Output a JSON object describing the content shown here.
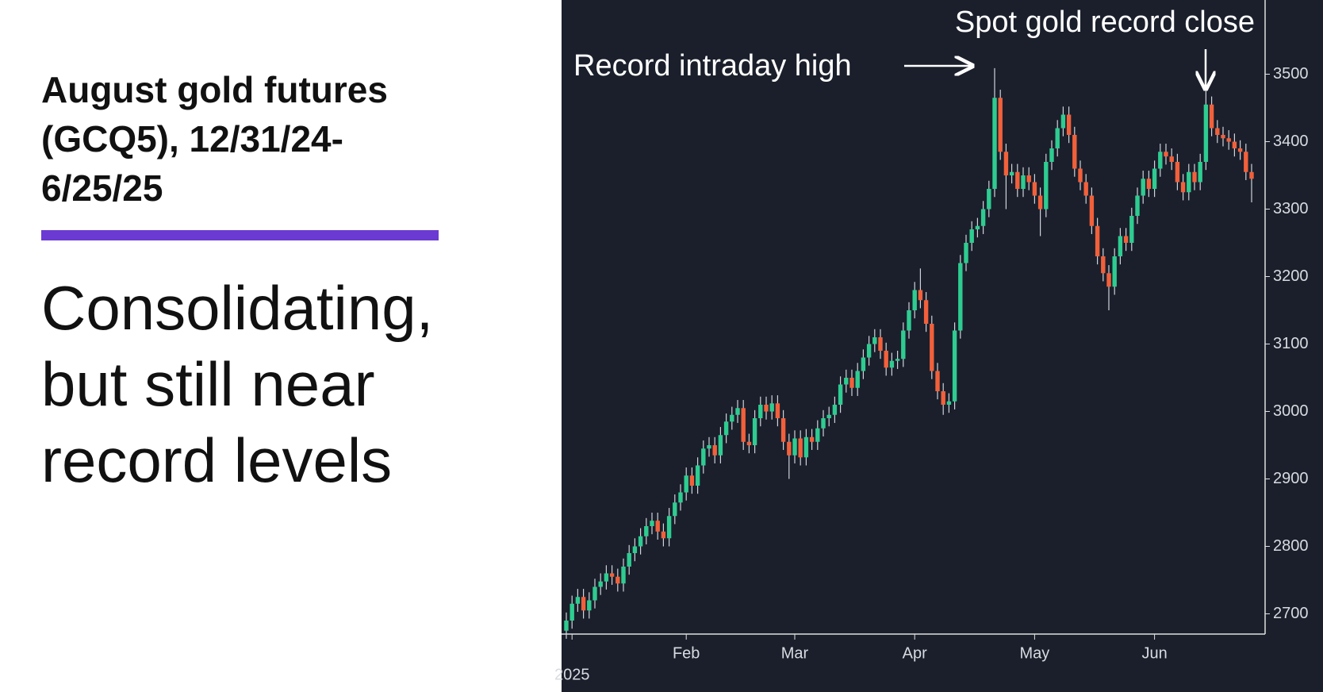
{
  "header": {
    "title": "August gold futures (GCQ5), 12/31/24-6/25/25",
    "subtitle": "Consolidating, but still near record levels"
  },
  "chart_data": {
    "type": "candlestick",
    "annotations": [
      "Record intraday high",
      "Spot gold record close"
    ],
    "categories": [
      null,
      "2025",
      null,
      null,
      null,
      null,
      null,
      null,
      null,
      null,
      null,
      null,
      null,
      null,
      null,
      null,
      null,
      null,
      null,
      null,
      null,
      "Feb",
      null,
      null,
      null,
      null,
      null,
      null,
      null,
      null,
      null,
      null,
      null,
      null,
      null,
      null,
      null,
      null,
      null,
      null,
      "Mar",
      null,
      null,
      null,
      null,
      null,
      null,
      null,
      null,
      null,
      null,
      null,
      null,
      null,
      null,
      null,
      null,
      null,
      null,
      null,
      null,
      "Apr",
      null,
      null,
      null,
      null,
      null,
      null,
      null,
      null,
      null,
      null,
      null,
      null,
      null,
      null,
      null,
      null,
      null,
      null,
      null,
      null,
      "May",
      null,
      null,
      null,
      null,
      null,
      null,
      null,
      null,
      null,
      null,
      null,
      null,
      null,
      null,
      null,
      null,
      null,
      null,
      null,
      null,
      "Jun",
      null,
      null,
      null,
      null,
      null,
      null,
      null,
      null,
      null,
      null,
      null,
      null,
      null,
      null,
      null,
      null,
      null
    ],
    "open": [
      2675,
      2690,
      2715,
      2725,
      2705,
      2720,
      2740,
      2748,
      2760,
      2755,
      2745,
      2770,
      2790,
      2800,
      2815,
      2830,
      2838,
      2822,
      2812,
      2845,
      2865,
      2880,
      2905,
      2890,
      2920,
      2945,
      2950,
      2935,
      2965,
      2985,
      2995,
      3005,
      2955,
      2950,
      2990,
      3010,
      3000,
      3012,
      2990,
      2955,
      2935,
      2960,
      2932,
      2962,
      2955,
      2975,
      2990,
      2995,
      3010,
      3040,
      3050,
      3035,
      3060,
      3080,
      3100,
      3110,
      3090,
      3065,
      3075,
      3078,
      3120,
      3150,
      3180,
      3165,
      3130,
      3060,
      3030,
      3010,
      3015,
      3120,
      3220,
      3250,
      3270,
      3275,
      3300,
      3330,
      3465,
      3385,
      3350,
      3355,
      3330,
      3350,
      3340,
      3320,
      3300,
      3370,
      3390,
      3420,
      3440,
      3410,
      3360,
      3340,
      3320,
      3275,
      3230,
      3205,
      3185,
      3230,
      3260,
      3250,
      3290,
      3320,
      3345,
      3330,
      3360,
      3385,
      3378,
      3370,
      3340,
      3325,
      3355,
      3340,
      3370,
      3455,
      3420,
      3410,
      3405,
      3400,
      3390,
      3385,
      3355
    ],
    "high": [
      2702,
      2727,
      2737,
      2737,
      2732,
      2752,
      2760,
      2772,
      2772,
      2767,
      2782,
      2802,
      2812,
      2827,
      2842,
      2850,
      2850,
      2834,
      2857,
      2877,
      2892,
      2917,
      2917,
      2932,
      2957,
      2962,
      2962,
      2977,
      2997,
      3007,
      3017,
      3017,
      2967,
      3002,
      3022,
      3022,
      3024,
      3024,
      3002,
      2967,
      2972,
      2972,
      2974,
      2974,
      2987,
      3002,
      3007,
      3022,
      3052,
      3062,
      3062,
      3072,
      3092,
      3112,
      3122,
      3122,
      3102,
      3087,
      3090,
      3132,
      3162,
      3192,
      3212,
      3177,
      3142,
      3072,
      3042,
      3027,
      3132,
      3232,
      3262,
      3282,
      3287,
      3312,
      3342,
      3509,
      3477,
      3397,
      3367,
      3367,
      3362,
      3362,
      3352,
      3332,
      3382,
      3402,
      3432,
      3452,
      3452,
      3422,
      3372,
      3352,
      3332,
      3287,
      3242,
      3217,
      3242,
      3272,
      3272,
      3302,
      3332,
      3357,
      3357,
      3372,
      3397,
      3397,
      3390,
      3382,
      3352,
      3367,
      3367,
      3382,
      3476,
      3467,
      3432,
      3422,
      3417,
      3412,
      3402,
      3397,
      3367
    ],
    "low": [
      2663,
      2678,
      2703,
      2693,
      2693,
      2708,
      2728,
      2736,
      2743,
      2733,
      2733,
      2758,
      2778,
      2788,
      2803,
      2818,
      2810,
      2800,
      2800,
      2833,
      2853,
      2868,
      2878,
      2878,
      2908,
      2933,
      2923,
      2923,
      2953,
      2973,
      2983,
      2943,
      2938,
      2938,
      2978,
      2988,
      2988,
      2978,
      2943,
      2900,
      2923,
      2920,
      2920,
      2943,
      2943,
      2963,
      2978,
      2983,
      2998,
      3028,
      3023,
      3023,
      3048,
      3068,
      3088,
      3078,
      3053,
      3053,
      3063,
      3066,
      3108,
      3138,
      3153,
      3118,
      3048,
      3018,
      2995,
      2998,
      3003,
      3108,
      3208,
      3238,
      3258,
      3263,
      3288,
      3318,
      3373,
      3300,
      3338,
      3318,
      3318,
      3328,
      3308,
      3260,
      3288,
      3358,
      3378,
      3408,
      3398,
      3348,
      3328,
      3308,
      3263,
      3218,
      3193,
      3150,
      3173,
      3218,
      3238,
      3238,
      3278,
      3308,
      3318,
      3318,
      3348,
      3366,
      3358,
      3328,
      3313,
      3313,
      3328,
      3328,
      3358,
      3408,
      3398,
      3393,
      3388,
      3378,
      3373,
      3343,
      3310
    ],
    "close": [
      2690,
      2715,
      2725,
      2705,
      2720,
      2740,
      2748,
      2760,
      2755,
      2745,
      2770,
      2790,
      2800,
      2815,
      2830,
      2838,
      2822,
      2812,
      2845,
      2865,
      2880,
      2905,
      2890,
      2920,
      2945,
      2950,
      2935,
      2965,
      2985,
      2995,
      3005,
      2955,
      2950,
      2990,
      3010,
      3000,
      3012,
      2990,
      2955,
      2935,
      2960,
      2932,
      2962,
      2955,
      2975,
      2990,
      2995,
      3010,
      3040,
      3050,
      3035,
      3060,
      3080,
      3100,
      3110,
      3090,
      3065,
      3075,
      3078,
      3120,
      3150,
      3180,
      3165,
      3130,
      3060,
      3030,
      3010,
      3015,
      3120,
      3220,
      3250,
      3270,
      3275,
      3300,
      3330,
      3465,
      3385,
      3350,
      3355,
      3330,
      3350,
      3340,
      3320,
      3300,
      3370,
      3390,
      3420,
      3440,
      3410,
      3360,
      3340,
      3320,
      3275,
      3230,
      3205,
      3185,
      3230,
      3260,
      3250,
      3290,
      3320,
      3345,
      3330,
      3360,
      3385,
      3378,
      3370,
      3340,
      3325,
      3355,
      3340,
      3370,
      3455,
      3420,
      3410,
      3405,
      3400,
      3390,
      3385,
      3355,
      3345
    ],
    "up_color": "#2ecc91",
    "down_color": "#f2603b",
    "wick_color": "#cfd3da",
    "ylim": [
      2670,
      3610
    ],
    "yticks": [
      2700,
      2800,
      2900,
      3000,
      3100,
      3200,
      3300,
      3400,
      3500
    ],
    "grid": false
  }
}
